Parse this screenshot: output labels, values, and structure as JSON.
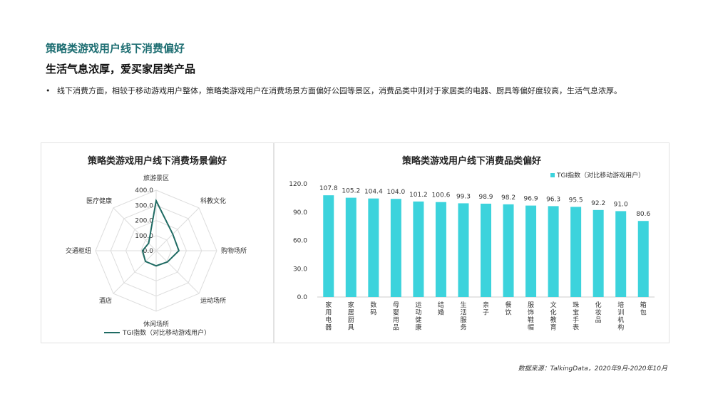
{
  "header": {
    "title": "策略类游戏用户线下消费偏好",
    "subtitle": "生活气息浓厚，爱买家居类产品",
    "bullet": "线下消费方面，相较于移动游戏用户整体，策略类游戏用户在消费场景方面偏好公园等景区，消费品类中则对于家居类的电器、厨具等偏好度较高，生活气息浓厚。"
  },
  "source": "数据来源：TalkingData，2020年9月-2020年10月",
  "colors": {
    "accent": "#1f6f73",
    "radar_line": "#1f6b63",
    "bar": "#3cd3dc",
    "grid": "#dddddd"
  },
  "chart_data": [
    {
      "type": "radar",
      "title": "策略类游戏用户线下消费场景偏好",
      "categories": [
        "旅游景区",
        "科教文化",
        "购物场所",
        "运动场所",
        "休闲场所",
        "酒店",
        "交通枢纽",
        "医疗健康"
      ],
      "series": [
        {
          "name": "TGI指数（对比移动游戏用户）",
          "values": [
            330,
            155,
            150,
            105,
            100,
            100,
            90,
            70
          ]
        }
      ],
      "ticks": [
        "400.0",
        "300.0",
        "200.0",
        "100.0",
        "0.0"
      ],
      "range": [
        0,
        400
      ],
      "legend": "bottom"
    },
    {
      "type": "bar",
      "title": "策略类游戏用户线下消费品类偏好",
      "categories": [
        "家用电器",
        "家居厨具",
        "数码",
        "母婴用品",
        "运动健康",
        "结婚",
        "生活服务",
        "亲子",
        "餐饮",
        "服饰鞋帽",
        "文化教育",
        "珠宝手表",
        "化妆品",
        "培训机构",
        "箱包"
      ],
      "series": [
        {
          "name": "TGI指数（对比移动游戏用户）",
          "values": [
            107.8,
            105.2,
            104.4,
            104.0,
            101.2,
            100.6,
            99.3,
            98.9,
            98.2,
            96.9,
            96.3,
            95.5,
            92.2,
            91.0,
            80.6
          ]
        }
      ],
      "data_labels": [
        "107.8",
        "105.2",
        "104.4",
        "104.0",
        "101.2",
        "100.6",
        "99.3",
        "98.9",
        "98.2",
        "96.9",
        "96.3",
        "95.5",
        "92.2",
        "91.0",
        "80.6"
      ],
      "yticks": [
        "0.0",
        "30.0",
        "60.0",
        "90.0",
        "120.0"
      ],
      "ylim": [
        0,
        120
      ],
      "legend": "top-right"
    }
  ]
}
